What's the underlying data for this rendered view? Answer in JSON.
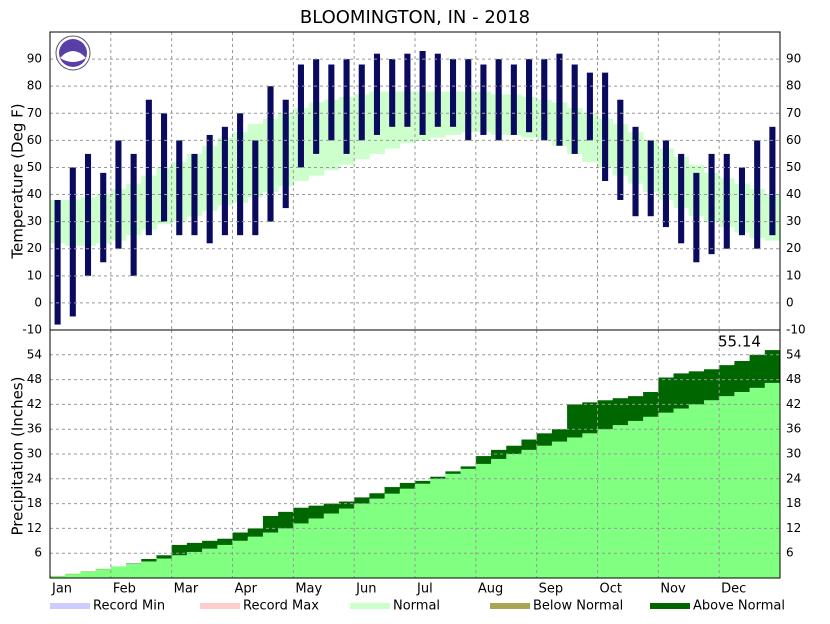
{
  "chart_data": [
    {
      "type": "temperature",
      "title": "BLOOMINGTON, IN - 2018",
      "y_label": "Temperature (Deg F)",
      "categories": [
        "Jan",
        null,
        null,
        null,
        "Feb",
        null,
        null,
        null,
        "Mar",
        null,
        null,
        null,
        "Apr",
        null,
        null,
        null,
        "May",
        null,
        null,
        null,
        "Jun",
        null,
        null,
        null,
        "Jul",
        null,
        null,
        null,
        "Aug",
        null,
        null,
        null,
        "Sep",
        null,
        null,
        null,
        "Oct",
        null,
        null,
        null,
        "Nov",
        null,
        null,
        null,
        "Dec",
        null,
        null,
        null
      ],
      "series": [
        {
          "name": "Observed High",
          "color": "#0a0a5e",
          "values": [
            38,
            50,
            55,
            48,
            60,
            55,
            75,
            70,
            60,
            55,
            62,
            65,
            70,
            60,
            80,
            75,
            88,
            90,
            88,
            90,
            88,
            92,
            90,
            92,
            93,
            92,
            90,
            90,
            88,
            90,
            88,
            90,
            90,
            92,
            88,
            85,
            85,
            75,
            65,
            60,
            60,
            55,
            48,
            55,
            55,
            50,
            60,
            65
          ]
        },
        {
          "name": "Observed Low",
          "color": "#0a0a5e",
          "values": [
            -8,
            -5,
            10,
            15,
            20,
            10,
            25,
            30,
            25,
            25,
            22,
            25,
            25,
            25,
            30,
            35,
            50,
            55,
            60,
            55,
            60,
            62,
            65,
            65,
            62,
            65,
            65,
            60,
            62,
            60,
            62,
            63,
            60,
            58,
            55,
            60,
            45,
            38,
            32,
            32,
            28,
            22,
            15,
            18,
            20,
            25,
            20,
            25
          ]
        },
        {
          "name": "Normal High",
          "color": "#ccffcc",
          "values": [
            38,
            38,
            39,
            40,
            42,
            44,
            47,
            50,
            52,
            55,
            58,
            61,
            63,
            66,
            68,
            70,
            72,
            74,
            75,
            76,
            77,
            78,
            78,
            78,
            78,
            78,
            78,
            78,
            78,
            77,
            77,
            76,
            75,
            74,
            72,
            70,
            68,
            66,
            63,
            60,
            57,
            54,
            51,
            48,
            46,
            44,
            42,
            40
          ]
        },
        {
          "name": "Normal Low",
          "color": "#ccffcc",
          "values": [
            22,
            21,
            21,
            22,
            23,
            25,
            27,
            29,
            30,
            32,
            34,
            36,
            37,
            39,
            41,
            43,
            45,
            47,
            49,
            51,
            53,
            55,
            57,
            59,
            60,
            61,
            62,
            63,
            63,
            62,
            62,
            61,
            60,
            58,
            55,
            52,
            50,
            47,
            44,
            41,
            38,
            35,
            32,
            30,
            28,
            26,
            24,
            23
          ]
        }
      ],
      "ylim": [
        -10,
        100
      ],
      "yticks": [
        -10,
        0,
        10,
        20,
        30,
        40,
        50,
        60,
        70,
        80,
        90
      ],
      "grid": true
    },
    {
      "type": "precipitation",
      "y_label": "Precipitation (Inches)",
      "annotation": "55.14",
      "categories": [
        "Jan",
        null,
        null,
        null,
        "Feb",
        null,
        null,
        null,
        "Mar",
        null,
        null,
        null,
        "Apr",
        null,
        null,
        null,
        "May",
        null,
        null,
        null,
        "Jun",
        null,
        null,
        null,
        "Jul",
        null,
        null,
        null,
        "Aug",
        null,
        null,
        null,
        "Sep",
        null,
        null,
        null,
        "Oct",
        null,
        null,
        null,
        "Nov",
        null,
        null,
        null,
        "Dec",
        null,
        null,
        null
      ],
      "series": [
        {
          "name": "Observed",
          "values": [
            0.4,
            0.9,
            1.5,
            2.1,
            2.8,
            3.5,
            4.6,
            5.5,
            8,
            8.5,
            9,
            9.5,
            11,
            12,
            15,
            16,
            17,
            17.5,
            18,
            18.5,
            19.5,
            20.5,
            22,
            23,
            23.5,
            24.5,
            25.8,
            27,
            29.5,
            31,
            32,
            33.5,
            35,
            36,
            42,
            42.5,
            43,
            43.5,
            44,
            45,
            48.5,
            49.5,
            50,
            50.5,
            51.5,
            52.5,
            54,
            55.14
          ]
        },
        {
          "name": "Normal",
          "color": "#80ff80",
          "values": [
            0.5,
            1.0,
            1.6,
            2.2,
            2.8,
            3.4,
            4.0,
            4.7,
            5.5,
            6.3,
            7.1,
            8.0,
            9.0,
            10.0,
            11.0,
            12.0,
            13.2,
            14.4,
            15.6,
            16.8,
            18.0,
            19.2,
            20.4,
            21.6,
            22.8,
            24.0,
            25.2,
            26.4,
            27.6,
            28.8,
            30.0,
            31.0,
            32.0,
            33.0,
            34.0,
            35.0,
            36.0,
            37.0,
            38.0,
            39.0,
            40.0,
            41.0,
            42.0,
            43.0,
            44.0,
            45.0,
            46.0,
            47.2
          ]
        }
      ],
      "ylim": [
        0,
        60
      ],
      "yticks": [
        6,
        12,
        18,
        24,
        30,
        36,
        42,
        48,
        54
      ],
      "grid": true,
      "legend": [
        {
          "name": "Record Min",
          "color": "#ccccff"
        },
        {
          "name": "Record Max",
          "color": "#ffcccc"
        },
        {
          "name": "Normal",
          "color": "#ccffcc"
        },
        {
          "name": "Below Normal",
          "color": "#aaa650"
        },
        {
          "name": "Above Normal",
          "color": "#006600"
        }
      ]
    }
  ]
}
